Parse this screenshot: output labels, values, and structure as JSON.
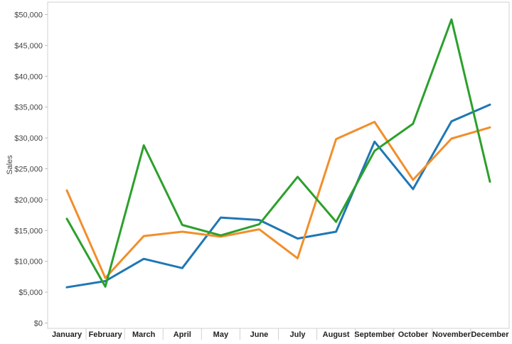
{
  "chart_data": {
    "type": "line",
    "title": "",
    "xlabel": "",
    "ylabel": "Sales",
    "ylim": [
      0,
      50000
    ],
    "grid": false,
    "categories": [
      "January",
      "February",
      "March",
      "April",
      "May",
      "June",
      "July",
      "August",
      "September",
      "October",
      "November",
      "December"
    ],
    "y_tick_labels": [
      "$0",
      "$5,000",
      "$10,000",
      "$15,000",
      "$20,000",
      "$25,000",
      "$30,000",
      "$35,000",
      "$40,000",
      "$45,000",
      "$50,000"
    ],
    "series": [
      {
        "color": "#1f77b4",
        "values": [
          5800,
          6800,
          10400,
          8900,
          17100,
          16700,
          13700,
          14800,
          29400,
          21700,
          32700,
          35400
        ]
      },
      {
        "color": "#f28e2b",
        "values": [
          21500,
          7300,
          14100,
          14800,
          14000,
          15200,
          10500,
          29800,
          32600,
          23200,
          29900,
          31700
        ]
      },
      {
        "color": "#2ca02c",
        "values": [
          16900,
          5900,
          28800,
          15900,
          14200,
          16000,
          23700,
          16400,
          27900,
          32300,
          49200,
          22900
        ]
      }
    ]
  }
}
